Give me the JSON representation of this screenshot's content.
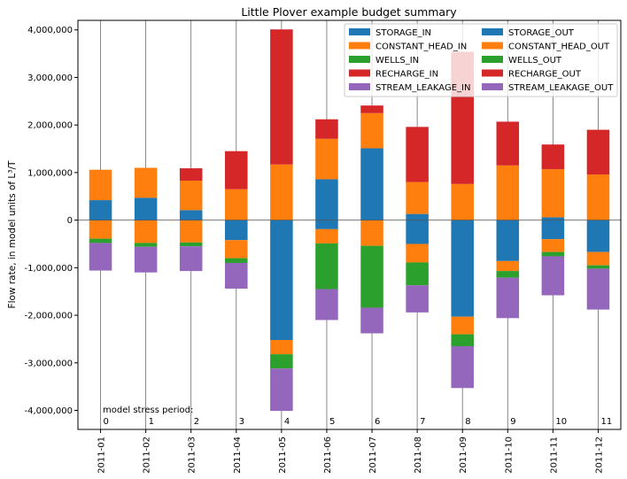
{
  "chart_data": {
    "type": "bar",
    "stacked": true,
    "title": "Little Plover example budget summary",
    "ylabel": "Flow rate, in model units of L³/T",
    "xlabel": "",
    "ylim": [
      -4400000,
      4200000
    ],
    "yticks": [
      -4000000,
      -3000000,
      -2000000,
      -1000000,
      0,
      1000000,
      2000000,
      3000000,
      4000000
    ],
    "ytick_labels": [
      "-4,000,000",
      "-3,000,000",
      "-2,000,000",
      "-1,000,000",
      "0",
      "1,000,000",
      "2,000,000",
      "3,000,000",
      "4,000,000"
    ],
    "grid": "vertical lines at each period",
    "legend_placement": "top-right",
    "categories": [
      "2011-01",
      "2011-02",
      "2011-03",
      "2011-04",
      "2011-05",
      "2011-06",
      "2011-07",
      "2011-08",
      "2011-09",
      "2011-10",
      "2011-11",
      "2011-12"
    ],
    "stress_period_label": "model stress period:",
    "stress_periods": [
      "0",
      "1",
      "2",
      "3",
      "4",
      "5",
      "6",
      "7",
      "8",
      "9",
      "10",
      "11"
    ],
    "series_in": [
      {
        "name": "STORAGE_IN",
        "color": "#1f77b4",
        "values": [
          420000,
          470000,
          210000,
          0,
          0,
          860000,
          1510000,
          130000,
          0,
          0,
          60000,
          0
        ]
      },
      {
        "name": "CONSTANT_HEAD_IN",
        "color": "#ff7f0e",
        "values": [
          640000,
          630000,
          620000,
          650000,
          1170000,
          850000,
          740000,
          670000,
          760000,
          1150000,
          1010000,
          960000
        ]
      },
      {
        "name": "WELLS_IN",
        "color": "#2ca02c",
        "values": [
          0,
          0,
          0,
          0,
          0,
          0,
          0,
          0,
          0,
          0,
          0,
          0
        ]
      },
      {
        "name": "RECHARGE_IN",
        "color": "#d62728",
        "values": [
          0,
          0,
          260000,
          800000,
          2840000,
          410000,
          160000,
          1160000,
          2780000,
          920000,
          520000,
          940000
        ]
      },
      {
        "name": "STREAM_LEAKAGE_IN",
        "color": "#9467bd",
        "values": [
          0,
          0,
          0,
          0,
          0,
          0,
          0,
          0,
          0,
          0,
          0,
          0
        ]
      }
    ],
    "series_out": [
      {
        "name": "STORAGE_OUT",
        "color": "#1f77b4",
        "values": [
          0,
          0,
          0,
          420000,
          2520000,
          190000,
          0,
          500000,
          2030000,
          860000,
          400000,
          670000
        ]
      },
      {
        "name": "CONSTANT_HEAD_OUT",
        "color": "#ff7f0e",
        "values": [
          390000,
          480000,
          470000,
          380000,
          300000,
          300000,
          540000,
          390000,
          370000,
          210000,
          270000,
          280000
        ]
      },
      {
        "name": "WELLS_OUT",
        "color": "#2ca02c",
        "values": [
          90000,
          80000,
          80000,
          100000,
          300000,
          960000,
          1300000,
          480000,
          250000,
          140000,
          90000,
          70000
        ]
      },
      {
        "name": "RECHARGE_OUT",
        "color": "#d62728",
        "values": [
          0,
          0,
          0,
          0,
          0,
          0,
          0,
          0,
          0,
          0,
          0,
          0
        ]
      },
      {
        "name": "STREAM_LEAKAGE_OUT",
        "color": "#9467bd",
        "values": [
          580000,
          540000,
          520000,
          540000,
          890000,
          650000,
          540000,
          570000,
          880000,
          850000,
          820000,
          860000
        ]
      }
    ]
  }
}
